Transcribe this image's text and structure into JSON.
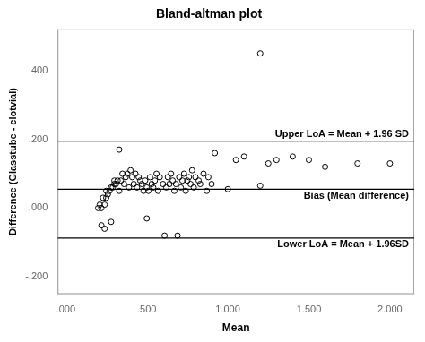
{
  "chart_data": {
    "type": "scatter",
    "title": "Bland-altman plot",
    "xlabel": "Mean",
    "ylabel": "Difference (Glasstube - clotvial)",
    "x": [
      0.2,
      0.21,
      0.22,
      0.22,
      0.23,
      0.24,
      0.24,
      0.25,
      0.25,
      0.26,
      0.27,
      0.28,
      0.28,
      0.29,
      0.3,
      0.3,
      0.31,
      0.32,
      0.33,
      0.33,
      0.34,
      0.35,
      0.36,
      0.37,
      0.38,
      0.39,
      0.4,
      0.41,
      0.42,
      0.43,
      0.44,
      0.45,
      0.46,
      0.47,
      0.48,
      0.49,
      0.5,
      0.5,
      0.51,
      0.52,
      0.53,
      0.54,
      0.55,
      0.56,
      0.57,
      0.58,
      0.6,
      0.61,
      0.62,
      0.63,
      0.64,
      0.65,
      0.66,
      0.67,
      0.68,
      0.69,
      0.7,
      0.71,
      0.72,
      0.73,
      0.74,
      0.75,
      0.76,
      0.77,
      0.78,
      0.79,
      0.8,
      0.82,
      0.83,
      0.85,
      0.87,
      0.88,
      0.9,
      0.92,
      1.0,
      1.05,
      1.1,
      1.2,
      1.25,
      1.3,
      1.4,
      1.5,
      1.6,
      1.8,
      2.0,
      1.2
    ],
    "values": [
      0.0,
      0.01,
      0.0,
      -0.05,
      0.03,
      0.01,
      -0.06,
      0.03,
      0.05,
      0.04,
      0.05,
      0.06,
      -0.04,
      0.06,
      0.07,
      0.08,
      0.07,
      0.08,
      0.17,
      0.05,
      0.08,
      0.1,
      0.07,
      0.09,
      0.1,
      0.06,
      0.11,
      0.09,
      0.07,
      0.1,
      0.06,
      0.09,
      0.08,
      0.07,
      0.05,
      0.08,
      0.06,
      -0.03,
      0.05,
      0.09,
      0.07,
      0.06,
      0.08,
      0.1,
      0.05,
      0.09,
      0.07,
      -0.08,
      0.06,
      0.09,
      0.07,
      0.1,
      0.08,
      0.05,
      0.07,
      -0.08,
      0.09,
      0.06,
      0.08,
      0.1,
      0.05,
      0.08,
      0.09,
      0.07,
      0.11,
      0.06,
      0.09,
      0.08,
      0.07,
      0.1,
      0.05,
      0.09,
      0.07,
      0.16,
      0.055,
      0.14,
      0.15,
      0.065,
      0.13,
      0.14,
      0.15,
      0.14,
      0.12,
      0.13,
      0.13,
      0.45
    ],
    "color": "#000000",
    "marker": "circle",
    "reference_lines": [
      {
        "value": 0.195,
        "label": "Upper LoA = Mean + 1.96 SD",
        "color": "#000000"
      },
      {
        "value": 0.055,
        "label": "Bias (Mean difference)",
        "color": "#000000"
      },
      {
        "value": -0.087,
        "label": "Lower LoA = Mean + 1.96SD",
        "color": "#000000"
      }
    ],
    "xlim": [
      -0.05,
      2.15
    ],
    "ylim": [
      -0.25,
      0.52
    ],
    "xticks": [
      {
        "value": 0.0,
        "label": ".000"
      },
      {
        "value": 0.5,
        "label": ".500"
      },
      {
        "value": 1.0,
        "label": "1.000"
      },
      {
        "value": 1.5,
        "label": "1.500"
      },
      {
        "value": 2.0,
        "label": "2.000"
      }
    ],
    "yticks": [
      {
        "value": -0.2,
        "label": "-.200"
      },
      {
        "value": 0.0,
        "label": ".000"
      },
      {
        "value": 0.2,
        "label": ".200"
      },
      {
        "value": 0.4,
        "label": ".400"
      }
    ],
    "grid": false
  }
}
